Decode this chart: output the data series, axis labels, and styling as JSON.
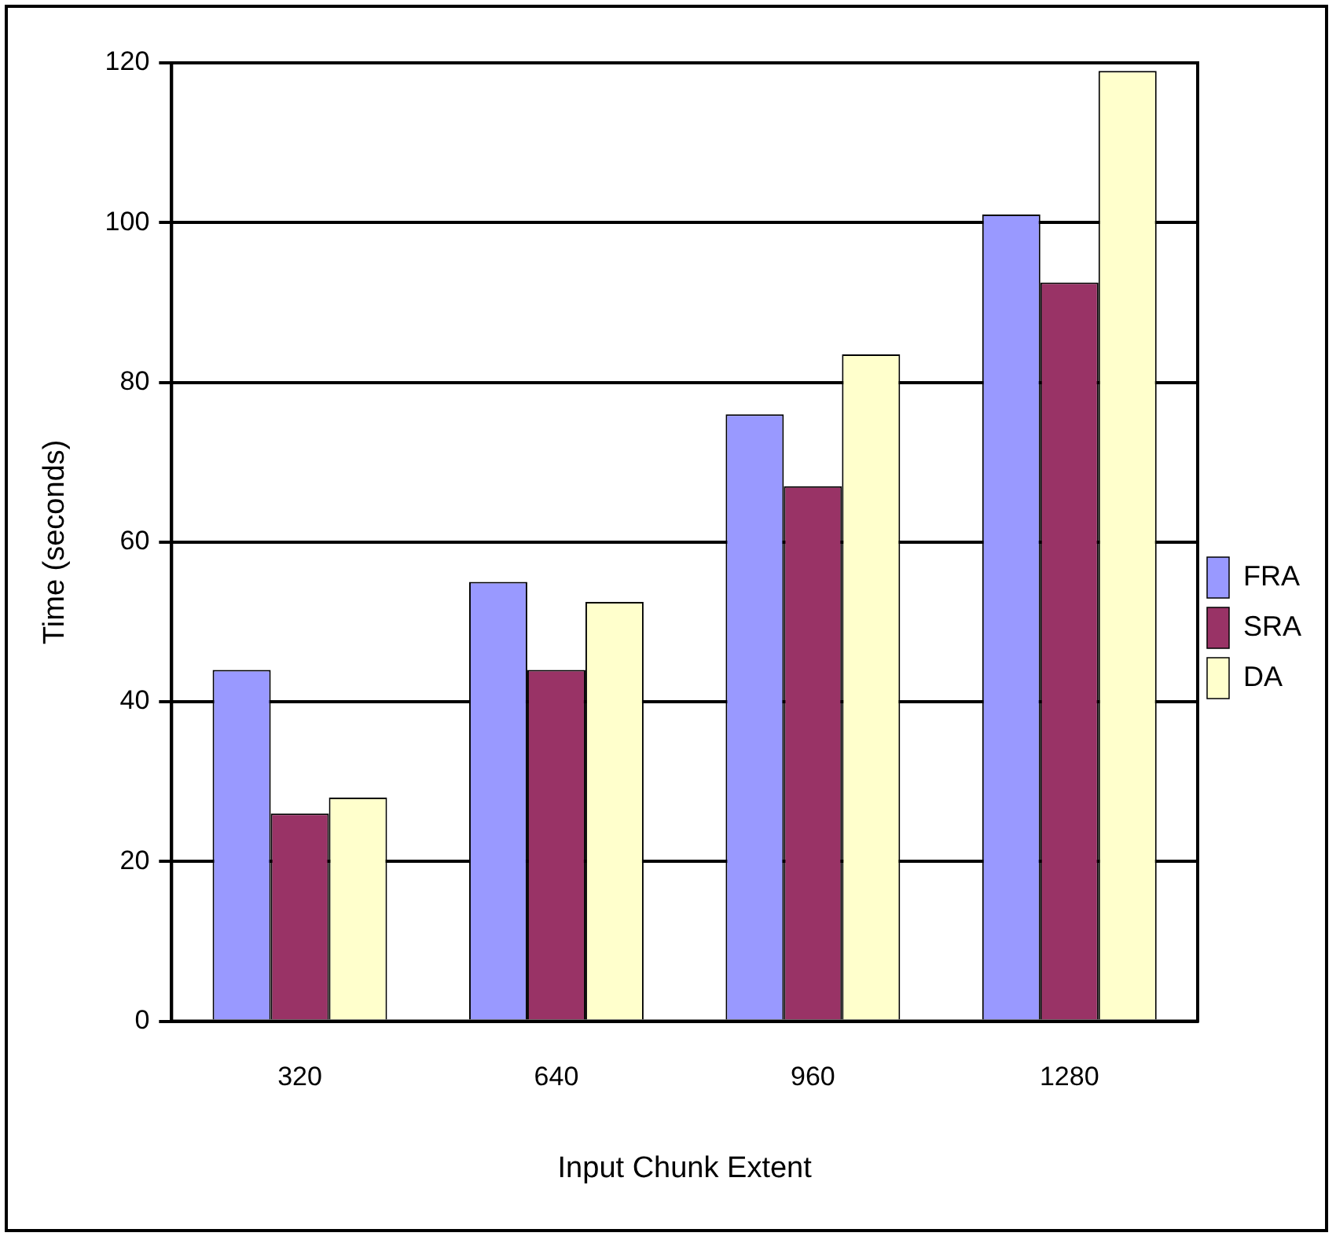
{
  "chart_data": {
    "type": "bar",
    "xlabel": "Input Chunk Extent",
    "ylabel": "Time (seconds)",
    "categories": [
      "320",
      "640",
      "960",
      "1280"
    ],
    "series": [
      {
        "name": "FRA",
        "color": "#9999ff",
        "values": [
          44,
          55,
          76,
          101
        ]
      },
      {
        "name": "SRA",
        "color": "#993366",
        "values": [
          26,
          44,
          67,
          92.5
        ]
      },
      {
        "name": "DA",
        "color": "#ffffcc",
        "values": [
          28,
          52.5,
          83.5,
          119
        ]
      }
    ],
    "ylim": [
      0,
      120
    ],
    "yticks": [
      0,
      20,
      40,
      60,
      80,
      100,
      120
    ],
    "grid": "y",
    "legend": "right"
  }
}
